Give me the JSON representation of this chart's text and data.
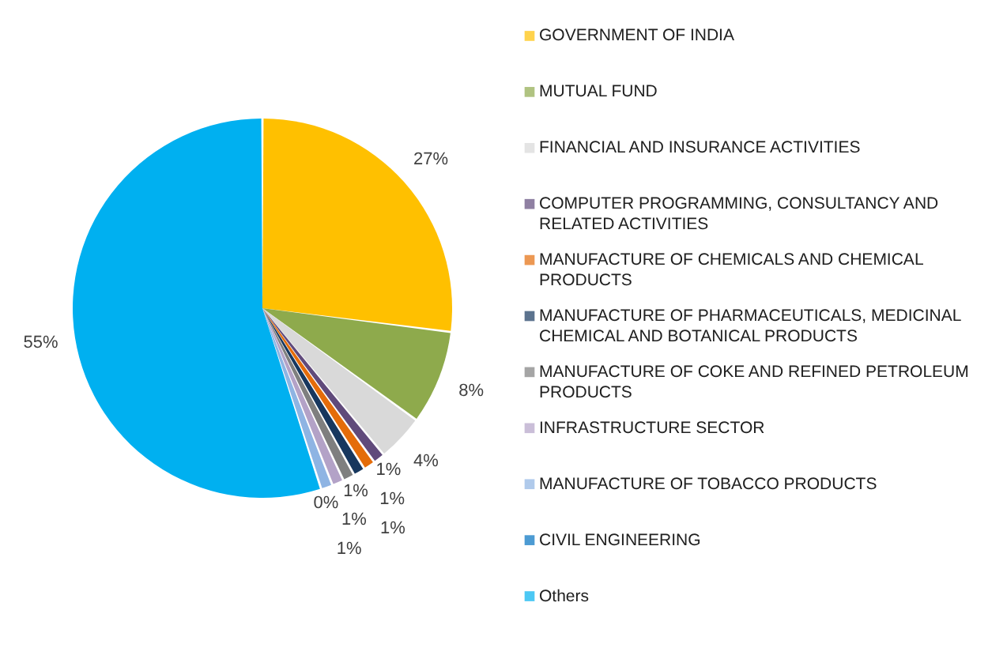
{
  "chart_data": {
    "type": "pie",
    "categories": [
      "GOVERNMENT OF INDIA",
      "MUTUAL FUND",
      "FINANCIAL AND INSURANCE ACTIVITIES",
      "COMPUTER PROGRAMMING, CONSULTANCY AND RELATED ACTIVITIES",
      "MANUFACTURE OF CHEMICALS AND CHEMICAL PRODUCTS",
      "MANUFACTURE OF PHARMACEUTICALS, MEDICINAL CHEMICAL AND BOTANICAL PRODUCTS",
      "MANUFACTURE OF COKE AND REFINED PETROLEUM PRODUCTS",
      "INFRASTRUCTURE SECTOR",
      "MANUFACTURE OF TOBACCO PRODUCTS",
      "CIVIL ENGINEERING",
      "Others"
    ],
    "values": [
      27,
      8,
      4,
      1,
      1,
      1,
      1,
      1,
      1,
      0,
      55
    ],
    "value_labels": [
      "27%",
      "8%",
      "4%",
      "1%",
      "1%",
      "1%",
      "1%",
      "1%",
      "1%",
      "0%",
      "55%"
    ],
    "colors": [
      "#ffc000",
      "#8eaa4c",
      "#d9d9d9",
      "#604a7b",
      "#e46c0a",
      "#17375e",
      "#7f7f7f",
      "#b3a2c7",
      "#8eb4e3",
      "#0070c0",
      "#00b0f0"
    ],
    "legend": "right"
  }
}
